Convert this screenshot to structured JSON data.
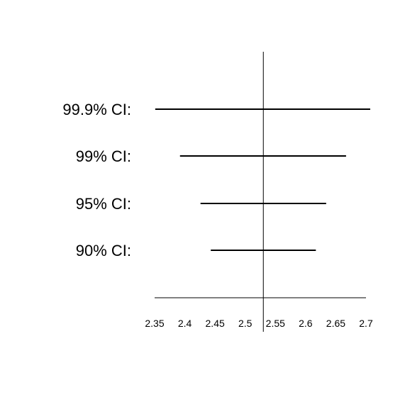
{
  "chart_data": {
    "type": "interval",
    "title": "",
    "xlabel": "",
    "ylabel": "",
    "xlim": [
      2.35,
      2.7
    ],
    "reference_x": 2.53,
    "x_ticks": [
      2.35,
      2.4,
      2.45,
      2.5,
      2.55,
      2.6,
      2.65,
      2.7
    ],
    "x_tick_labels": [
      "2.35",
      "2.4",
      "2.45",
      "2.5",
      "2.55",
      "2.6",
      "2.65",
      "2.7"
    ],
    "grid": false,
    "categories": [
      "99.9% CI:",
      "99% CI:",
      "95% CI:",
      "90% CI:"
    ],
    "intervals": [
      {
        "label": "99.9% CI:",
        "low": 2.351,
        "high": 2.707
      },
      {
        "label": "99% CI:",
        "low": 2.392,
        "high": 2.667
      },
      {
        "label": "95% CI:",
        "low": 2.426,
        "high": 2.634
      },
      {
        "label": "90% CI:",
        "low": 2.443,
        "high": 2.617
      }
    ],
    "colors": {
      "line": "#000000",
      "background": "#ffffff"
    }
  }
}
